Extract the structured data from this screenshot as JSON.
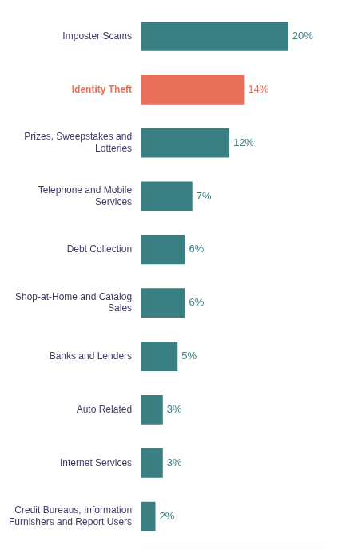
{
  "chart_data": {
    "type": "bar",
    "orientation": "horizontal",
    "categories": [
      "Credit Bureaus, Information\nFurnishers and Report Users",
      "Internet Services",
      "Auto Related",
      "Banks and Lenders",
      "Shop-at-Home and Catalog\nSales",
      "Debt Collection",
      "Telephone and Mobile\nServices",
      "Prizes, Sweepstakes and\nLotteries",
      "Identity Theft",
      "Imposter Scams"
    ],
    "values": [
      2,
      3,
      3,
      5,
      6,
      6,
      7,
      12,
      14,
      20
    ],
    "value_labels": [
      "2%",
      "3%",
      "3%",
      "5%",
      "6%",
      "6%",
      "7%",
      "12%",
      "14%",
      "20%"
    ],
    "colors": [
      "#3a7f82",
      "#3a7f82",
      "#3a7f82",
      "#3a7f82",
      "#3a7f82",
      "#3a7f82",
      "#3a7f82",
      "#3a7f82",
      "#e8705a",
      "#3a7f82"
    ],
    "xlim": [
      0,
      25
    ],
    "data_labels": true,
    "tick_labels": "y",
    "grid": false
  }
}
